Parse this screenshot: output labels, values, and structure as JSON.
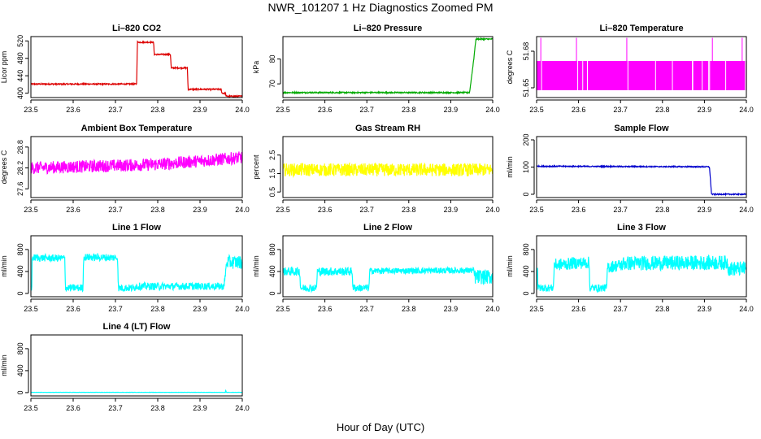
{
  "title": "NWR_101207  1 Hz Diagnostics Zoomed PM",
  "xlabel": "Hour of Day (UTC)",
  "chart_data": [
    {
      "type": "line",
      "title": "Li–820 CO2",
      "ylabel": "Licor ppm",
      "color": "#dd0000",
      "xlim": [
        23.5,
        24.0
      ],
      "ylim": [
        390,
        530
      ],
      "x_ticks": [
        "23.5",
        "23.6",
        "23.7",
        "23.8",
        "23.9",
        "24.0"
      ],
      "y_ticks": [
        "400",
        "440",
        "480",
        "520"
      ],
      "series": [
        {
          "x": [
            23.5,
            23.75,
            23.752,
            23.79,
            23.792,
            23.83,
            23.832,
            23.87,
            23.872,
            23.95,
            23.952,
            23.96,
            23.962,
            24.0
          ],
          "y": [
            421,
            421,
            517,
            517,
            489,
            489,
            458,
            458,
            409,
            409,
            400,
            400,
            393,
            393
          ],
          "noise": 1.5
        }
      ]
    },
    {
      "type": "line",
      "title": "Li–820 Pressure",
      "ylabel": "kPa",
      "color": "#00aa00",
      "xlim": [
        23.5,
        24.0
      ],
      "ylim": [
        64.5,
        89.0
      ],
      "x_ticks": [
        "23.5",
        "23.6",
        "23.7",
        "23.8",
        "23.9",
        "24.0"
      ],
      "y_ticks": [
        "70",
        "80"
      ],
      "series": [
        {
          "x": [
            23.5,
            23.943,
            23.945,
            23.955,
            23.958,
            23.96,
            24.0
          ],
          "y": [
            66.5,
            66.5,
            66.7,
            80.0,
            85.0,
            88.0,
            88.0
          ],
          "noise": 0.25
        }
      ]
    },
    {
      "type": "line",
      "title": "Li–820 Temperature",
      "ylabel": "degrees C",
      "color": "#ff00ff",
      "xlim": [
        23.5,
        24.0
      ],
      "ylim": [
        51.642,
        51.692
      ],
      "x_ticks": [
        "23.5",
        "23.6",
        "23.7",
        "23.8",
        "23.9",
        "24.0"
      ],
      "y_ticks": [
        "51.65",
        "51.68"
      ],
      "series": [
        {
          "x": [
            23.5,
            24.0
          ],
          "y": [
            51.664,
            51.664
          ],
          "band": [
            51.648,
            51.672
          ],
          "spikes": [
            23.51,
            23.595,
            23.715,
            23.919,
            23.99
          ]
        }
      ]
    },
    {
      "type": "line",
      "title": "Ambient Box Temperature",
      "ylabel": "degrees C",
      "color": "#ff00ff",
      "xlim": [
        23.5,
        24.0
      ],
      "ylim": [
        27.35,
        29.1
      ],
      "x_ticks": [
        "23.5",
        "23.6",
        "23.7",
        "23.8",
        "23.9",
        "24.0"
      ],
      "y_ticks": [
        "27.6",
        "28.2",
        "28.8"
      ],
      "series": [
        {
          "x": [
            23.5,
            23.8,
            24.0
          ],
          "y": [
            28.2,
            28.3,
            28.5
          ],
          "noise": 0.18,
          "min": 27.45,
          "max": 29.0
        }
      ]
    },
    {
      "type": "line",
      "title": "Gas Stream RH",
      "ylabel": "percent",
      "color": "#ffff00",
      "xlim": [
        23.5,
        24.0
      ],
      "ylim": [
        0.2,
        3.5
      ],
      "x_ticks": [
        "23.5",
        "23.6",
        "23.7",
        "23.8",
        "23.9",
        "24.0"
      ],
      "y_ticks": [
        "0.5",
        "1.5",
        "2.5"
      ],
      "series": [
        {
          "x": [
            23.5,
            24.0
          ],
          "y": [
            1.7,
            1.7
          ],
          "noise": 0.35,
          "min": 0.5,
          "max": 3.05
        }
      ]
    },
    {
      "type": "line",
      "title": "Sample Flow",
      "ylabel": "ml/min",
      "color": "#0000cc",
      "xlim": [
        23.5,
        24.0
      ],
      "ylim": [
        -12,
        212
      ],
      "x_ticks": [
        "23.5",
        "23.6",
        "23.7",
        "23.8",
        "23.9",
        "24.0"
      ],
      "y_ticks": [
        "0",
        "100",
        "200"
      ],
      "series": [
        {
          "x": [
            23.5,
            23.912,
            23.917,
            24.0
          ],
          "y": [
            103,
            101,
            0,
            0
          ],
          "noise": 2.0
        }
      ]
    },
    {
      "type": "line",
      "title": "Line 1 Flow",
      "ylabel": "ml/min",
      "color": "#00ffff",
      "xlim": [
        23.5,
        24.0
      ],
      "ylim": [
        -60,
        1050
      ],
      "x_ticks": [
        "23.5",
        "23.6",
        "23.7",
        "23.8",
        "23.9",
        "24.0"
      ],
      "y_ticks": [
        "0",
        "400",
        "800"
      ],
      "series": [
        {
          "x": [
            23.5,
            23.502,
            23.503,
            23.58,
            23.582,
            23.623,
            23.625,
            23.705,
            23.707,
            23.745,
            23.747,
            23.955,
            23.957,
            23.962,
            23.964,
            24.0
          ],
          "y": [
            100,
            100,
            650,
            640,
            100,
            100,
            660,
            650,
            100,
            100,
            130,
            130,
            130,
            500,
            570,
            570
          ],
          "noise": [
            0.06,
            0.06,
            0.06,
            0.06,
            0.06,
            0.06,
            0.06,
            0.06,
            0.06,
            0.06,
            0.06,
            0.06,
            0.06,
            0.06,
            0.11,
            0.11
          ]
        }
      ]
    },
    {
      "type": "line",
      "title": "Line 2 Flow",
      "ylabel": "ml/min",
      "color": "#00ffff",
      "xlim": [
        23.5,
        24.0
      ],
      "ylim": [
        -60,
        1050
      ],
      "x_ticks": [
        "23.5",
        "23.6",
        "23.7",
        "23.8",
        "23.9",
        "24.0"
      ],
      "y_ticks": [
        "0",
        "400",
        "800"
      ],
      "series": [
        {
          "x": [
            23.5,
            23.54,
            23.542,
            23.58,
            23.582,
            23.665,
            23.667,
            23.705,
            23.707,
            23.955,
            23.957,
            24.0
          ],
          "y": [
            400,
            400,
            100,
            100,
            400,
            400,
            100,
            100,
            410,
            420,
            300,
            300
          ],
          "noise": [
            0.07,
            0.07,
            0.06,
            0.06,
            0.07,
            0.07,
            0.06,
            0.06,
            0.05,
            0.05,
            0.12,
            0.12
          ]
        }
      ]
    },
    {
      "type": "line",
      "title": "Line 3 Flow",
      "ylabel": "ml/min",
      "color": "#00ffff",
      "xlim": [
        23.5,
        24.0
      ],
      "ylim": [
        -60,
        1050
      ],
      "x_ticks": [
        "23.5",
        "23.6",
        "23.7",
        "23.8",
        "23.9",
        "24.0"
      ],
      "y_ticks": [
        "0",
        "400",
        "800"
      ],
      "series": [
        {
          "x": [
            23.5,
            23.502,
            23.503,
            23.54,
            23.542,
            23.58,
            23.582,
            23.625,
            23.627,
            23.667,
            23.669,
            23.705,
            23.707,
            23.955,
            23.957,
            24.0
          ],
          "y": [
            100,
            550,
            100,
            100,
            520,
            540,
            550,
            560,
            100,
            100,
            480,
            520,
            550,
            560,
            450,
            450
          ],
          "noise": [
            0.06,
            0.06,
            0.06,
            0.06,
            0.1,
            0.1,
            0.1,
            0.1,
            0.06,
            0.06,
            0.1,
            0.1,
            0.12,
            0.12,
            0.12,
            0.12
          ]
        }
      ]
    },
    {
      "type": "line",
      "title": "Line 4 (LT) Flow",
      "ylabel": "ml/min",
      "color": "#00ffff",
      "xlim": [
        23.5,
        24.0
      ],
      "ylim": [
        -60,
        1050
      ],
      "x_ticks": [
        "23.5",
        "23.6",
        "23.7",
        "23.8",
        "23.9",
        "24.0"
      ],
      "y_ticks": [
        "0",
        "400",
        "800"
      ],
      "series": [
        {
          "x": [
            23.5,
            23.96,
            23.961,
            23.962,
            23.963,
            24.0
          ],
          "y": [
            5,
            5,
            50,
            5,
            5,
            5
          ],
          "noise": 2
        }
      ]
    }
  ]
}
